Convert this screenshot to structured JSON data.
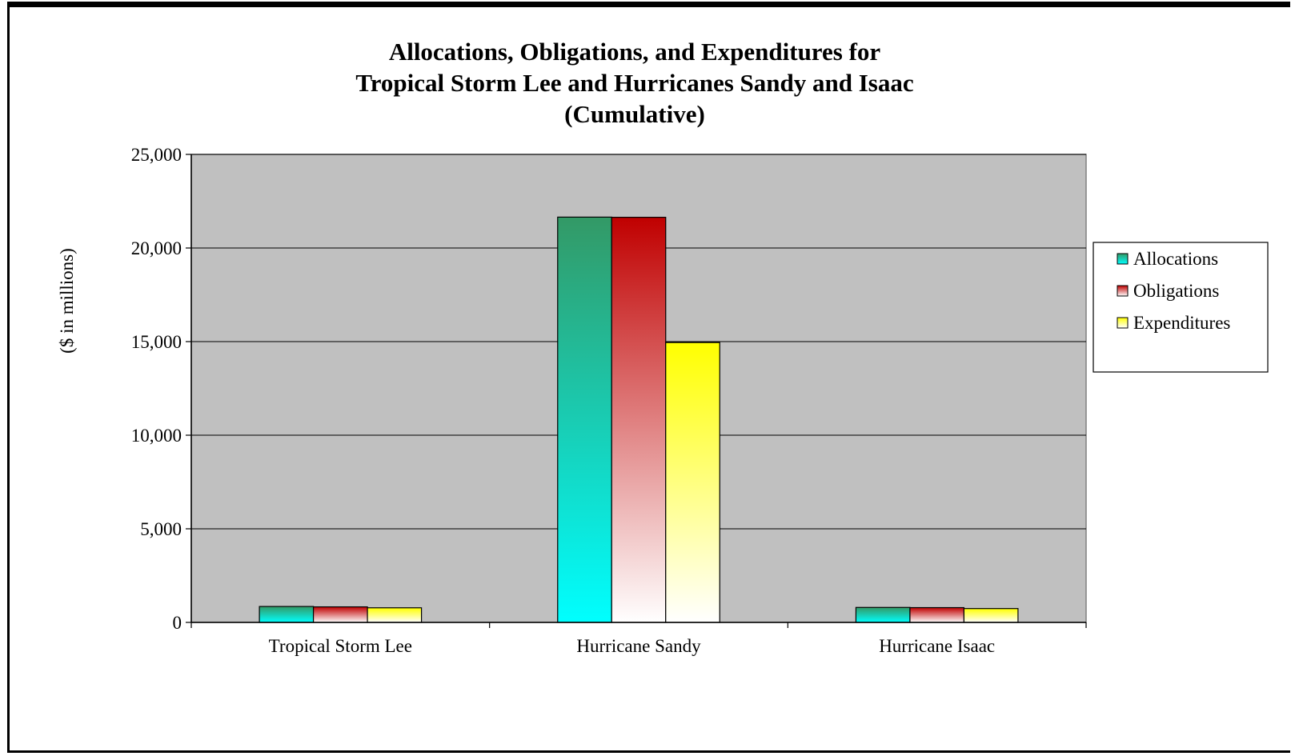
{
  "chart_data": {
    "type": "bar",
    "title_lines": [
      "Allocations, Obligations, and Expenditures for",
      "Tropical Storm Lee and Hurricanes Sandy and Isaac",
      "(Cumulative)"
    ],
    "ylabel": "($ in millions)",
    "xlabel": "",
    "categories": [
      "Tropical Storm Lee",
      "Hurricane Sandy",
      "Hurricane Isaac"
    ],
    "yticks": [
      "0",
      "5,000",
      "10,000",
      "15,000",
      "20,000",
      "25,000"
    ],
    "ylim": [
      0,
      25000
    ],
    "grid": true,
    "legend_position": "right",
    "plot_background": "#c0c0c0",
    "series": [
      {
        "name": "Allocations",
        "values": [
          850,
          21650,
          800
        ],
        "color_top": "#339966",
        "color_bottom": "#00ffff"
      },
      {
        "name": "Obligations",
        "values": [
          830,
          21640,
          790
        ],
        "color_top": "#c00000",
        "color_bottom": "#ffffff"
      },
      {
        "name": "Expenditures",
        "values": [
          780,
          14950,
          740
        ],
        "color_top": "#ffff00",
        "color_bottom": "#ffffff"
      }
    ]
  }
}
